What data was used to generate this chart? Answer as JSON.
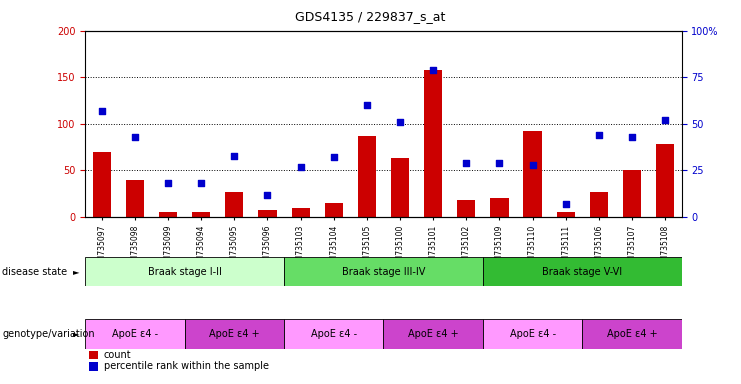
{
  "title": "GDS4135 / 229837_s_at",
  "samples": [
    "GSM735097",
    "GSM735098",
    "GSM735099",
    "GSM735094",
    "GSM735095",
    "GSM735096",
    "GSM735103",
    "GSM735104",
    "GSM735105",
    "GSM735100",
    "GSM735101",
    "GSM735102",
    "GSM735109",
    "GSM735110",
    "GSM735111",
    "GSM735106",
    "GSM735107",
    "GSM735108"
  ],
  "counts": [
    70,
    40,
    5,
    5,
    27,
    7,
    10,
    15,
    87,
    63,
    158,
    18,
    20,
    92,
    5,
    27,
    50,
    78
  ],
  "percentiles": [
    57,
    43,
    18,
    18,
    33,
    12,
    27,
    32,
    60,
    51,
    79,
    29,
    29,
    28,
    7,
    44,
    43,
    52
  ],
  "bar_color": "#cc0000",
  "scatter_color": "#0000cc",
  "ylim_left": [
    0,
    200
  ],
  "ylim_right": [
    0,
    100
  ],
  "yticks_left": [
    0,
    50,
    100,
    150,
    200
  ],
  "yticks_right": [
    0,
    25,
    50,
    75,
    100
  ],
  "ylabel_left_color": "#cc0000",
  "ylabel_right_color": "#0000cc",
  "disease_state_groups": [
    {
      "label": "Braak stage I-II",
      "start": 0,
      "end": 6,
      "color": "#ccffcc"
    },
    {
      "label": "Braak stage III-IV",
      "start": 6,
      "end": 12,
      "color": "#66dd66"
    },
    {
      "label": "Braak stage V-VI",
      "start": 12,
      "end": 18,
      "color": "#33bb33"
    }
  ],
  "genotype_groups": [
    {
      "label": "ApoE ε4 -",
      "start": 0,
      "end": 3,
      "color": "#ff99ff"
    },
    {
      "label": "ApoE ε4 +",
      "start": 3,
      "end": 6,
      "color": "#cc44cc"
    },
    {
      "label": "ApoE ε4 -",
      "start": 6,
      "end": 9,
      "color": "#ff99ff"
    },
    {
      "label": "ApoE ε4 +",
      "start": 9,
      "end": 12,
      "color": "#cc44cc"
    },
    {
      "label": "ApoE ε4 -",
      "start": 12,
      "end": 15,
      "color": "#ff99ff"
    },
    {
      "label": "ApoE ε4 +",
      "start": 15,
      "end": 18,
      "color": "#cc44cc"
    }
  ],
  "legend_count_color": "#cc0000",
  "legend_percentile_color": "#0000cc",
  "background_color": "#ffffff"
}
